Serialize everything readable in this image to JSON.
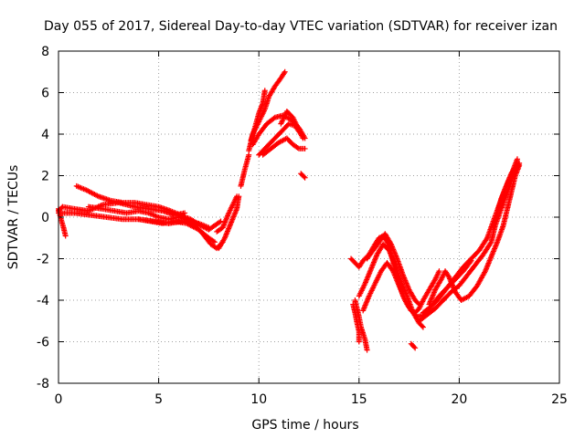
{
  "chart_data": {
    "type": "scatter",
    "title": "Day 055 of 2017, Sidereal Day-to-day VTEC variation (SDTVAR) for receiver izan",
    "xlabel": "GPS time / hours",
    "ylabel": "SDTVAR / TECUs",
    "xlim": [
      0,
      25
    ],
    "ylim": [
      -8,
      8
    ],
    "xticks": [
      0,
      5,
      10,
      15,
      20,
      25
    ],
    "yticks": [
      -8,
      -6,
      -4,
      -2,
      0,
      2,
      4,
      6,
      8
    ],
    "grid": true,
    "marker": "+",
    "color": "#ff0000",
    "series": [
      {
        "tracks": [
          [
            [
              0.0,
              0.3
            ],
            [
              0.2,
              0.5
            ],
            [
              0.8,
              0.4
            ],
            [
              1.5,
              0.3
            ],
            [
              2.2,
              0.6
            ],
            [
              3.0,
              0.7
            ],
            [
              3.8,
              0.5
            ],
            [
              4.5,
              0.4
            ],
            [
              5.2,
              0.3
            ],
            [
              5.8,
              0.1
            ],
            [
              6.3,
              0.2
            ]
          ],
          [
            [
              0.0,
              0.4
            ],
            [
              0.1,
              0.0
            ],
            [
              0.25,
              -0.5
            ],
            [
              0.35,
              -0.9
            ]
          ],
          [
            [
              0.0,
              0.2
            ],
            [
              0.8,
              0.2
            ],
            [
              1.6,
              0.1
            ],
            [
              2.4,
              0.0
            ],
            [
              3.2,
              -0.1
            ],
            [
              4.0,
              -0.1
            ],
            [
              4.8,
              -0.2
            ],
            [
              5.5,
              -0.3
            ],
            [
              6.2,
              -0.2
            ],
            [
              7.0,
              -0.3
            ],
            [
              7.5,
              -0.5
            ]
          ],
          [
            [
              0.9,
              1.5
            ],
            [
              1.4,
              1.3
            ],
            [
              2.0,
              1.0
            ],
            [
              2.6,
              0.8
            ],
            [
              3.2,
              0.7
            ],
            [
              3.8,
              0.7
            ],
            [
              4.4,
              0.6
            ],
            [
              5.0,
              0.5
            ],
            [
              5.6,
              0.3
            ],
            [
              6.1,
              0.1
            ],
            [
              6.6,
              -0.1
            ],
            [
              7.1,
              -0.4
            ],
            [
              7.5,
              -0.6
            ],
            [
              7.8,
              -0.4
            ],
            [
              8.1,
              -0.2
            ]
          ],
          [
            [
              1.5,
              0.5
            ],
            [
              2.2,
              0.4
            ],
            [
              2.8,
              0.3
            ],
            [
              3.4,
              0.2
            ],
            [
              4.0,
              0.3
            ],
            [
              4.5,
              0.2
            ],
            [
              5.0,
              0.0
            ],
            [
              5.5,
              -0.1
            ],
            [
              6.0,
              0.0
            ],
            [
              6.6,
              -0.2
            ],
            [
              7.2,
              -0.8
            ],
            [
              7.6,
              -1.3
            ],
            [
              7.9,
              -1.5
            ],
            [
              8.2,
              -1.2
            ]
          ],
          [
            [
              4.0,
              -0.1
            ],
            [
              4.6,
              -0.2
            ],
            [
              5.2,
              -0.3
            ],
            [
              5.8,
              -0.2
            ],
            [
              6.4,
              -0.3
            ],
            [
              7.0,
              -0.6
            ],
            [
              7.5,
              -1.0
            ],
            [
              7.8,
              -1.2
            ]
          ],
          [
            [
              7.9,
              -0.7
            ],
            [
              8.2,
              -0.5
            ],
            [
              8.5,
              0.2
            ],
            [
              8.7,
              0.6
            ],
            [
              8.9,
              1.0
            ]
          ],
          [
            [
              8.0,
              -1.5
            ],
            [
              8.3,
              -1.0
            ],
            [
              8.6,
              -0.3
            ],
            [
              8.9,
              0.4
            ],
            [
              9.0,
              1.0
            ]
          ],
          [
            [
              9.1,
              1.5
            ],
            [
              9.3,
              2.3
            ],
            [
              9.5,
              3.0
            ]
          ],
          [
            [
              9.5,
              3.2
            ],
            [
              9.7,
              4.0
            ],
            [
              10.0,
              4.6
            ],
            [
              10.3,
              5.2
            ],
            [
              10.5,
              5.8
            ],
            [
              10.8,
              6.3
            ],
            [
              11.1,
              6.7
            ],
            [
              11.3,
              7.0
            ]
          ],
          [
            [
              9.6,
              3.7
            ],
            [
              9.8,
              4.3
            ],
            [
              10.0,
              5.0
            ],
            [
              10.2,
              5.5
            ],
            [
              10.3,
              6.1
            ]
          ],
          [
            [
              9.7,
              3.5
            ],
            [
              10.0,
              4.0
            ],
            [
              10.4,
              4.5
            ],
            [
              10.8,
              4.8
            ],
            [
              11.2,
              4.9
            ],
            [
              11.6,
              4.7
            ],
            [
              12.0,
              4.3
            ],
            [
              12.3,
              3.8
            ]
          ],
          [
            [
              10.0,
              3.0
            ],
            [
              10.4,
              3.4
            ],
            [
              10.8,
              3.8
            ],
            [
              11.2,
              4.2
            ],
            [
              11.5,
              4.5
            ],
            [
              11.8,
              4.4
            ],
            [
              12.1,
              4.0
            ]
          ],
          [
            [
              10.2,
              3.0
            ],
            [
              10.6,
              3.3
            ],
            [
              11.0,
              3.6
            ],
            [
              11.4,
              3.8
            ],
            [
              11.7,
              3.5
            ],
            [
              12.0,
              3.3
            ],
            [
              12.3,
              3.3
            ]
          ],
          [
            [
              11.1,
              4.5
            ],
            [
              11.4,
              5.1
            ],
            [
              11.7,
              4.8
            ],
            [
              12.0,
              4.2
            ],
            [
              12.2,
              3.8
            ]
          ],
          [
            [
              12.1,
              2.1
            ],
            [
              12.2,
              2.0
            ],
            [
              12.3,
              1.9
            ]
          ],
          [
            [
              14.6,
              -2.0
            ],
            [
              14.8,
              -2.2
            ],
            [
              15.0,
              -2.4
            ],
            [
              15.2,
              -2.1
            ],
            [
              15.5,
              -1.8
            ],
            [
              15.8,
              -1.3
            ],
            [
              16.0,
              -1.0
            ],
            [
              16.2,
              -0.9
            ],
            [
              16.4,
              -1.2
            ],
            [
              16.6,
              -1.8
            ],
            [
              16.8,
              -2.5
            ],
            [
              17.0,
              -3.2
            ],
            [
              17.2,
              -3.8
            ],
            [
              17.4,
              -4.2
            ],
            [
              17.6,
              -4.5
            ],
            [
              17.8,
              -4.6
            ],
            [
              18.0,
              -4.4
            ],
            [
              18.2,
              -4.0
            ],
            [
              18.5,
              -3.5
            ],
            [
              18.8,
              -3.0
            ],
            [
              19.0,
              -2.6
            ]
          ],
          [
            [
              14.8,
              -4.0
            ],
            [
              15.0,
              -4.8
            ],
            [
              15.1,
              -5.3
            ],
            [
              15.3,
              -5.9
            ],
            [
              15.4,
              -6.4
            ]
          ],
          [
            [
              14.7,
              -4.2
            ],
            [
              14.8,
              -4.6
            ],
            [
              14.9,
              -5.1
            ],
            [
              15.0,
              -5.5
            ],
            [
              15.0,
              -6.0
            ]
          ],
          [
            [
              15.0,
              -3.8
            ],
            [
              15.3,
              -3.2
            ],
            [
              15.6,
              -2.5
            ],
            [
              15.9,
              -1.8
            ],
            [
              16.2,
              -1.3
            ],
            [
              16.5,
              -1.6
            ],
            [
              16.8,
              -2.3
            ],
            [
              17.1,
              -3.1
            ],
            [
              17.4,
              -3.8
            ],
            [
              17.7,
              -4.6
            ],
            [
              18.0,
              -5.1
            ],
            [
              18.2,
              -5.3
            ]
          ],
          [
            [
              15.2,
              -4.5
            ],
            [
              15.5,
              -3.8
            ],
            [
              15.8,
              -3.2
            ],
            [
              16.1,
              -2.6
            ],
            [
              16.4,
              -2.2
            ],
            [
              16.7,
              -2.6
            ],
            [
              17.0,
              -3.3
            ],
            [
              17.3,
              -4.0
            ],
            [
              17.6,
              -4.5
            ],
            [
              17.9,
              -4.8
            ],
            [
              18.3,
              -4.7
            ],
            [
              18.6,
              -4.3
            ],
            [
              19.0,
              -3.8
            ],
            [
              19.4,
              -3.4
            ],
            [
              19.8,
              -3.0
            ],
            [
              20.2,
              -2.6
            ],
            [
              20.6,
              -2.1
            ]
          ],
          [
            [
              15.4,
              -2.0
            ],
            [
              15.7,
              -1.6
            ],
            [
              16.0,
              -1.2
            ],
            [
              16.3,
              -0.8
            ],
            [
              16.6,
              -1.3
            ],
            [
              16.9,
              -2.0
            ],
            [
              17.2,
              -2.8
            ],
            [
              17.5,
              -3.5
            ],
            [
              17.8,
              -4.0
            ],
            [
              18.0,
              -4.2
            ]
          ],
          [
            [
              17.6,
              -6.1
            ],
            [
              17.7,
              -6.2
            ],
            [
              17.8,
              -6.3
            ]
          ],
          [
            [
              18.0,
              -5.0
            ],
            [
              18.4,
              -4.7
            ],
            [
              18.8,
              -4.4
            ],
            [
              19.2,
              -4.0
            ],
            [
              19.6,
              -3.6
            ],
            [
              20.0,
              -3.3
            ],
            [
              20.4,
              -2.8
            ],
            [
              20.8,
              -2.3
            ],
            [
              21.2,
              -1.8
            ],
            [
              21.6,
              -1.2
            ],
            [
              21.8,
              -0.4
            ],
            [
              22.1,
              0.4
            ],
            [
              22.4,
              1.2
            ],
            [
              22.7,
              2.0
            ],
            [
              23.0,
              2.6
            ]
          ],
          [
            [
              18.5,
              -4.2
            ],
            [
              18.8,
              -3.5
            ],
            [
              19.1,
              -3.0
            ],
            [
              19.3,
              -2.6
            ],
            [
              19.5,
              -2.9
            ],
            [
              19.8,
              -3.6
            ],
            [
              20.1,
              -4.0
            ],
            [
              20.5,
              -3.8
            ],
            [
              20.9,
              -3.3
            ],
            [
              21.3,
              -2.6
            ],
            [
              21.6,
              -1.9
            ],
            [
              21.9,
              -1.2
            ],
            [
              22.2,
              -0.4
            ],
            [
              22.4,
              0.4
            ],
            [
              22.6,
              1.2
            ],
            [
              22.8,
              2.0
            ],
            [
              23.0,
              2.5
            ]
          ],
          [
            [
              18.2,
              -4.6
            ],
            [
              18.6,
              -4.3
            ],
            [
              19.0,
              -3.9
            ],
            [
              19.4,
              -3.4
            ],
            [
              19.8,
              -2.9
            ],
            [
              20.2,
              -2.4
            ],
            [
              20.6,
              -2.0
            ],
            [
              21.0,
              -1.6
            ],
            [
              21.4,
              -1.0
            ],
            [
              21.7,
              -0.2
            ],
            [
              22.0,
              0.6
            ],
            [
              22.3,
              1.4
            ],
            [
              22.6,
              2.1
            ],
            [
              22.9,
              2.6
            ]
          ],
          [
            [
              21.7,
              -0.5
            ],
            [
              21.9,
              0.2
            ],
            [
              22.1,
              0.9
            ],
            [
              22.4,
              1.6
            ],
            [
              22.7,
              2.3
            ],
            [
              22.9,
              2.8
            ]
          ]
        ]
      }
    ]
  }
}
